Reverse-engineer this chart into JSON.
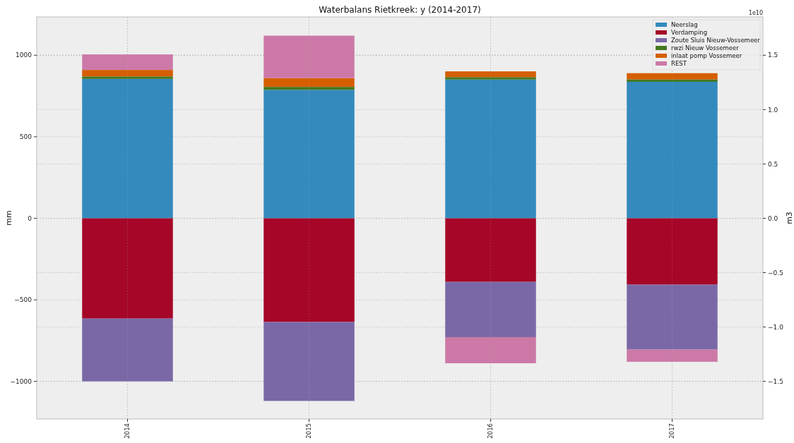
{
  "chart_data": {
    "type": "bar",
    "title": "Waterbalans Rietkreek: y (2014-2017)",
    "ylabel": "mm",
    "y2label": "m3",
    "categories": [
      "2014",
      "2015",
      "2016",
      "2017"
    ],
    "stacked": true,
    "series": [
      {
        "name": "Neerslag",
        "color": "#348abd",
        "values": [
          855,
          788,
          851,
          837
        ]
      },
      {
        "name": "Verdamping",
        "color": "#a60628",
        "values": [
          -615,
          -636,
          -390,
          -407
        ]
      },
      {
        "name": "Zoute Sluis Nieuw-Vossemeer",
        "color": "#7a68a6",
        "values": [
          -385,
          -484,
          -339,
          -398
        ]
      },
      {
        "name": "rwzi Nieuw Vossemeer",
        "color": "#467821",
        "values": [
          15,
          18,
          15,
          15
        ]
      },
      {
        "name": "inlaat pomp Vossemeer",
        "color": "#d55e00",
        "values": [
          40,
          54,
          35,
          38
        ]
      },
      {
        "name": "REST",
        "color": "#cc79a7",
        "values": [
          95,
          260,
          -160,
          -75
        ]
      }
    ],
    "ylim": [
      -1231,
      1235
    ],
    "yticks": [
      -1000,
      -500,
      0,
      500,
      1000
    ],
    "y2lim": [
      -1.8465,
      1.8525
    ],
    "y2ticks": [
      -1.5,
      {
        "value": -1,
        "label": "−1.0"
      },
      -0.5,
      {
        "value": 0,
        "label": "0.0"
      },
      0.5,
      {
        "value": 1,
        "label": "1.0"
      },
      1.5
    ],
    "annotations": [
      "1e10"
    ],
    "grid": true,
    "legend": "top right"
  }
}
